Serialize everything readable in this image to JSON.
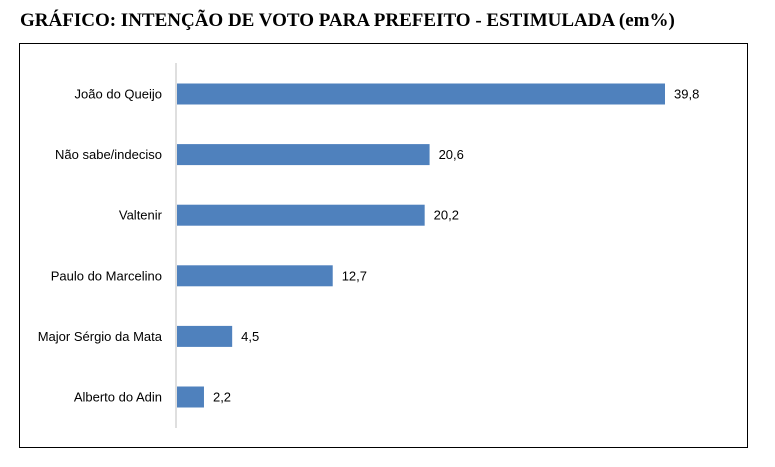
{
  "title": "GRÁFICO: INTENÇÃO DE VOTO PARA PREFEITO - ESTIMULADA (em%)",
  "colors": {
    "bar": "#4f81bd",
    "axis": "#bfbfbf"
  },
  "chart_data": {
    "type": "bar",
    "orientation": "horizontal",
    "title": "GRÁFICO: INTENÇÃO DE VOTO PARA PREFEITO - ESTIMULADA (em%)",
    "categories": [
      "João do Queijo",
      "Não sabe/indeciso",
      "Valtenir",
      "Paulo do Marcelino",
      "Major Sérgio da Mata",
      "Alberto do Adin"
    ],
    "values": [
      39.8,
      20.6,
      20.2,
      12.7,
      4.5,
      2.2
    ],
    "value_labels": [
      "39,8",
      "20,6",
      "20,2",
      "12,7",
      "4,5",
      "2,2"
    ],
    "xlabel": "",
    "ylabel": "",
    "xlim": [
      0,
      39.8
    ],
    "grid": false,
    "legend": "none"
  }
}
